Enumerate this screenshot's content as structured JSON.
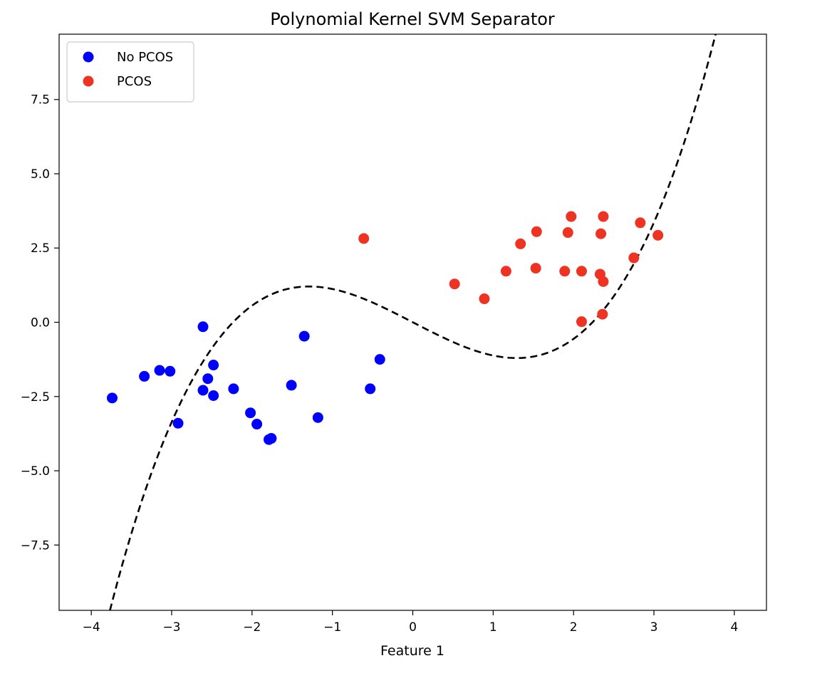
{
  "chart_data": {
    "type": "scatter",
    "title": "Polynomial Kernel SVM Separator",
    "xlabel": "Feature 1",
    "ylabel": "",
    "xlim": [
      -4.4,
      4.4
    ],
    "ylim": [
      -9.7,
      9.7
    ],
    "grid": false,
    "legend_position": "upper-left",
    "x_ticks": [
      {
        "value": -4,
        "label": "−4"
      },
      {
        "value": -3,
        "label": "−3"
      },
      {
        "value": -2,
        "label": "−2"
      },
      {
        "value": -1,
        "label": "−1"
      },
      {
        "value": 0,
        "label": "0"
      },
      {
        "value": 1,
        "label": "1"
      },
      {
        "value": 2,
        "label": "2"
      },
      {
        "value": 3,
        "label": "3"
      },
      {
        "value": 4,
        "label": "4"
      }
    ],
    "y_ticks": [
      {
        "value": -7.5,
        "label": "−7.5"
      },
      {
        "value": -5.0,
        "label": "−5.0"
      },
      {
        "value": -2.5,
        "label": "−2.5"
      },
      {
        "value": 0.0,
        "label": "0.0"
      },
      {
        "value": 2.5,
        "label": "2.5"
      },
      {
        "value": 5.0,
        "label": "5.0"
      },
      {
        "value": 7.5,
        "label": "7.5"
      }
    ],
    "series": [
      {
        "name": "No PCOS",
        "color": "#0000ff",
        "points": [
          [
            -3.74,
            -2.55
          ],
          [
            -3.34,
            -1.82
          ],
          [
            -3.15,
            -1.62
          ],
          [
            -3.02,
            -1.65
          ],
          [
            -2.92,
            -3.4
          ],
          [
            -2.61,
            -0.15
          ],
          [
            -2.61,
            -2.29
          ],
          [
            -2.55,
            -1.9
          ],
          [
            -2.48,
            -1.44
          ],
          [
            -2.48,
            -2.47
          ],
          [
            -2.23,
            -2.24
          ],
          [
            -2.02,
            -3.05
          ],
          [
            -1.94,
            -3.43
          ],
          [
            -1.79,
            -3.95
          ],
          [
            -1.76,
            -3.91
          ],
          [
            -1.51,
            -2.12
          ],
          [
            -1.35,
            -0.47
          ],
          [
            -1.18,
            -3.21
          ],
          [
            -0.53,
            -2.24
          ],
          [
            -0.41,
            -1.25
          ]
        ]
      },
      {
        "name": "PCOS",
        "color": "#ee3322",
        "points": [
          [
            -0.61,
            2.82
          ],
          [
            0.52,
            1.29
          ],
          [
            0.89,
            0.79
          ],
          [
            1.16,
            1.72
          ],
          [
            1.34,
            2.64
          ],
          [
            1.53,
            1.82
          ],
          [
            1.54,
            3.05
          ],
          [
            1.89,
            1.72
          ],
          [
            1.93,
            3.02
          ],
          [
            1.97,
            3.56
          ],
          [
            2.1,
            0.02
          ],
          [
            2.1,
            1.72
          ],
          [
            2.33,
            1.62
          ],
          [
            2.34,
            2.98
          ],
          [
            2.36,
            0.27
          ],
          [
            2.37,
            1.37
          ],
          [
            2.37,
            3.56
          ],
          [
            2.75,
            2.17
          ],
          [
            2.83,
            3.35
          ],
          [
            3.05,
            2.93
          ]
        ]
      }
    ],
    "separator": {
      "style": "dashed",
      "color": "#000000",
      "x_range": [
        -4,
        4
      ],
      "polynomial_coefficients_high_to_low": [
        0.28,
        0,
        -1.4,
        0
      ]
    }
  }
}
